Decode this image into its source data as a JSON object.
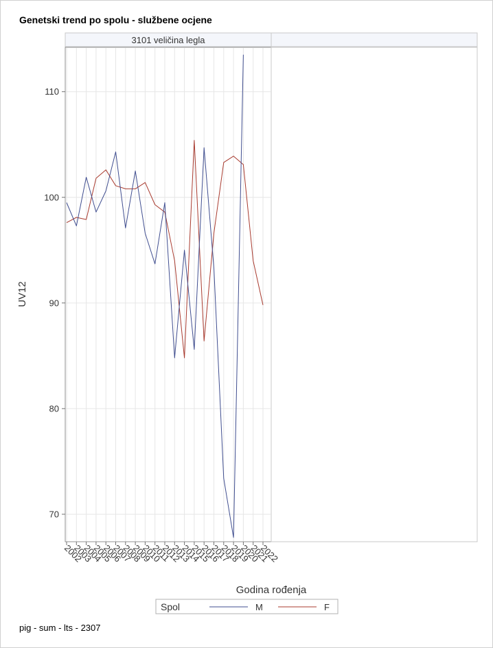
{
  "title": "Genetski trend po spolu - službene ocjene",
  "footnote": "pig - sum - lts - 2307",
  "chart_data": {
    "type": "line",
    "panel_title": "3101 veličina legla",
    "xlabel": "Godina rođenja",
    "ylabel": "UV12",
    "x": [
      2002,
      2003,
      2004,
      2005,
      2006,
      2007,
      2008,
      2009,
      2010,
      2011,
      2012,
      2013,
      2014,
      2015,
      2016,
      2017,
      2018,
      2019,
      2020,
      2021,
      2022
    ],
    "x_tick_labels": [
      "2002",
      "2003",
      "2004",
      "2005",
      "2006",
      "2007",
      "2008",
      "2009",
      "2010",
      "2011",
      "2012",
      "2013",
      "2014",
      "2015",
      "2016",
      "2017",
      "2018",
      "2019",
      "2020",
      "2021",
      "2022"
    ],
    "y_ticks": [
      70,
      80,
      90,
      100,
      110
    ],
    "ylim": [
      67.4,
      114.2
    ],
    "grid": true,
    "legend_title": "Spol",
    "legend_position": "bottom",
    "series": [
      {
        "name": "M",
        "color": "#3f4d8f",
        "values": [
          99.5,
          97.3,
          101.9,
          98.6,
          100.6,
          104.3,
          97.1,
          102.5,
          96.6,
          93.7,
          99.5,
          84.8,
          95.0,
          85.6,
          104.7,
          93.3,
          73.4,
          67.8,
          113.5,
          null,
          null
        ]
      },
      {
        "name": "F",
        "color": "#a83a2e",
        "values": [
          97.6,
          98.1,
          97.9,
          101.8,
          102.6,
          101.1,
          100.8,
          100.8,
          101.4,
          99.3,
          98.6,
          94.0,
          84.8,
          105.4,
          86.4,
          96.6,
          103.3,
          103.9,
          103.1,
          94.0,
          89.8
        ]
      }
    ]
  }
}
